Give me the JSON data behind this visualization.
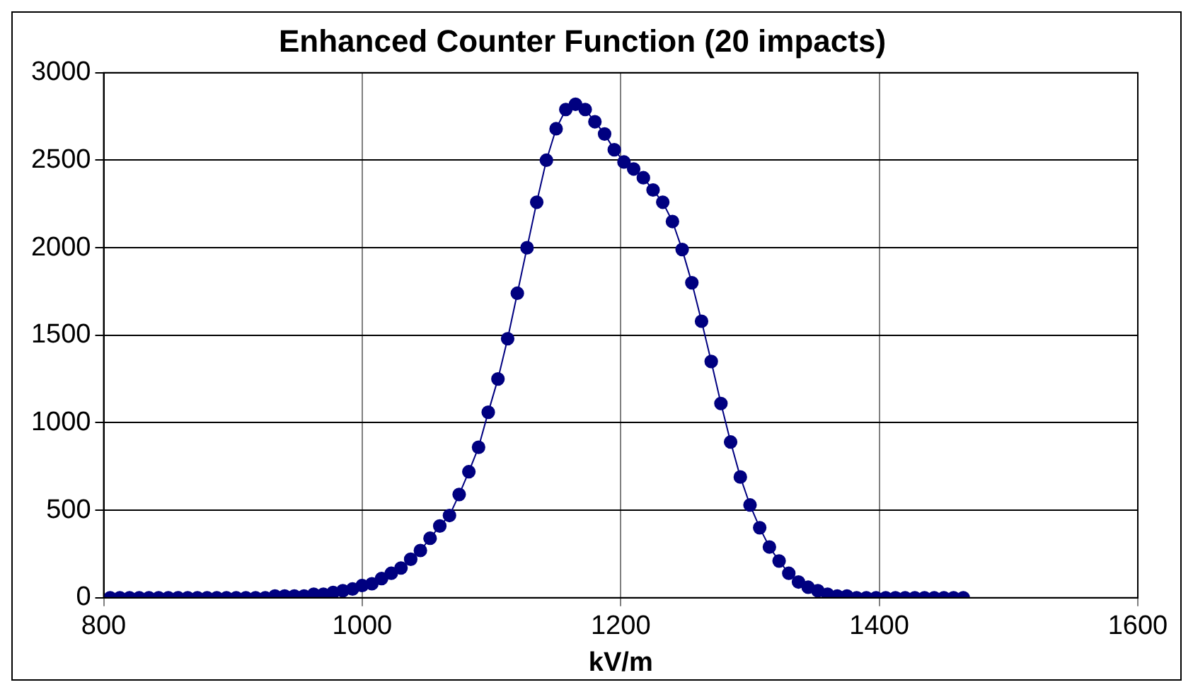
{
  "chart_data": {
    "type": "line",
    "title": "Enhanced Counter Function (20 impacts)",
    "xlabel": "kV/m",
    "x": [
      805,
      812.5,
      820,
      827.5,
      835,
      842.5,
      850,
      857.5,
      865,
      872.5,
      880,
      887.5,
      895,
      902.5,
      910,
      917.5,
      925,
      932.5,
      940,
      947.5,
      955,
      962.5,
      970,
      977.5,
      985,
      992.5,
      1000,
      1007.5,
      1015,
      1022.5,
      1030,
      1037.5,
      1045,
      1052.5,
      1060,
      1067.5,
      1075,
      1082.5,
      1090,
      1097.5,
      1105,
      1112.5,
      1120,
      1127.5,
      1135,
      1142.5,
      1150,
      1157.5,
      1165,
      1172.5,
      1180,
      1187.5,
      1195,
      1202.5,
      1210,
      1217.5,
      1225,
      1232.5,
      1240,
      1247.5,
      1255,
      1262.5,
      1270,
      1277.5,
      1285,
      1292.5,
      1300,
      1307.5,
      1315,
      1322.5,
      1330,
      1337.5,
      1345,
      1352.5,
      1360,
      1367.5,
      1375,
      1382.5,
      1390,
      1397.5,
      1405,
      1412.5,
      1420,
      1427.5,
      1435,
      1442.5,
      1450,
      1457.5,
      1465
    ],
    "series": [
      {
        "color": "#000080",
        "values": [
          0,
          0,
          0,
          0,
          0,
          0,
          0,
          0,
          0,
          0,
          0,
          0,
          0,
          0,
          0,
          0,
          0,
          10,
          10,
          10,
          10,
          20,
          20,
          30,
          40,
          50,
          70,
          80,
          110,
          140,
          170,
          220,
          270,
          340,
          410,
          470,
          590,
          720,
          860,
          1060,
          1250,
          1480,
          1740,
          2000,
          2260,
          2500,
          2680,
          2790,
          2820,
          2790,
          2720,
          2650,
          2560,
          2490,
          2450,
          2400,
          2330,
          2260,
          2150,
          1990,
          1800,
          1580,
          1350,
          1110,
          890,
          690,
          530,
          400,
          290,
          210,
          140,
          90,
          60,
          40,
          20,
          10,
          10,
          0,
          0,
          0,
          0,
          0,
          0,
          0,
          0,
          0,
          0,
          0,
          0
        ]
      }
    ],
    "xlim": [
      800,
      1600
    ],
    "xticks": [
      800,
      1000,
      1200,
      1400,
      1600
    ],
    "ylim": [
      0,
      3000
    ],
    "yticks": [
      0,
      500,
      1000,
      1500,
      2000,
      2500,
      3000
    ],
    "grid": true,
    "legend": false,
    "marker": "circle",
    "line_style": "solid"
  }
}
